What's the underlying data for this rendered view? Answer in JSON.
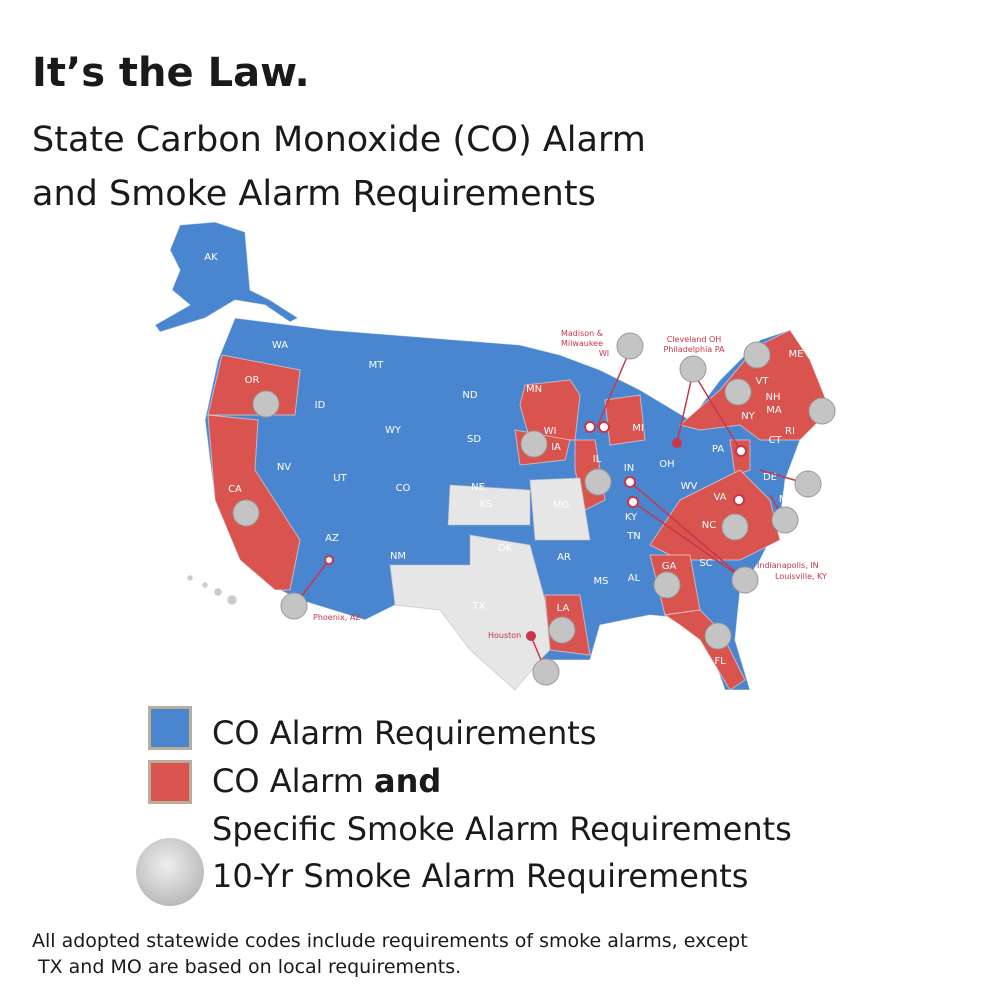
{
  "title": "It’s the Law.",
  "subtitle_line1": "State Carbon Monoxide (CO) Alarm",
  "subtitle_line2": "and Smoke Alarm Requirements",
  "colors": {
    "co": "#4a86d0",
    "co_and_smoke": "#d9534f",
    "local": "#e6e6e6",
    "alarm": "#c4c4c4"
  },
  "states": {
    "AK": "AK",
    "HI": "HI",
    "WA": "WA",
    "OR": "OR",
    "CA": "CA",
    "ID": "ID",
    "NV": "NV",
    "MT": "MT",
    "WY": "WY",
    "UT": "UT",
    "AZ": "AZ",
    "CO": "CO",
    "NM": "NM",
    "ND": "ND",
    "SD": "SD",
    "NE": "NE",
    "KS": "KS",
    "OK": "OK",
    "TX": "TX",
    "MN": "MN",
    "IA": "IA",
    "MO": "MO",
    "AR": "AR",
    "LA": "LA",
    "WI": "WI",
    "IL": "IL",
    "MI": "MI",
    "IN": "IN",
    "OH": "OH",
    "KY": "KY",
    "TN": "TN",
    "MS": "MS",
    "AL": "AL",
    "GA": "GA",
    "FL": "FL",
    "SC": "SC",
    "NC": "NC",
    "VA": "VA",
    "WV": "WV",
    "PA": "PA",
    "NY": "NY",
    "VT": "VT",
    "NH": "NH",
    "ME": "ME",
    "MA": "MA",
    "RI": "RI",
    "CT": "CT",
    "NJ": "NJ",
    "DE": "DE",
    "MD": "MD"
  },
  "callouts": {
    "madison": "Madison &",
    "milwaukee": "Milwaukee",
    "wi": "WI",
    "cleveland": "Cleveland OH",
    "philadelphia": "Philadelphia PA",
    "indianapolis": "Indianapolis, IN",
    "louisville": "Louisville, KY",
    "phoenix": "Phoenix, AZ",
    "houston": "Houston"
  },
  "legend": {
    "co": "CO Alarm Requirements",
    "co_smoke_a": "CO Alarm ",
    "co_smoke_b": "and",
    "co_smoke_c": "Specific Smoke Alarm Requirements",
    "ten_yr": "10-Yr Smoke Alarm Requirements"
  },
  "note_line1": "All adopted statewide codes include requirements of smoke alarms, except",
  "note_line2": "TX and MO are based on local requirements."
}
